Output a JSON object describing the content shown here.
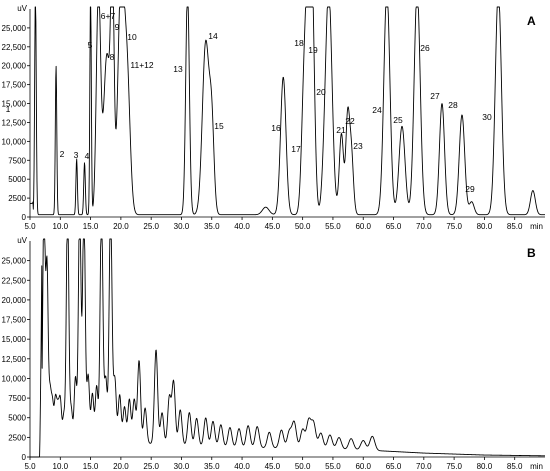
{
  "chart_data": [
    {
      "type": "line",
      "panel_label": "A",
      "yunit": "uV",
      "xunit": "min",
      "xlim": [
        5.0,
        90.0
      ],
      "ylim": [
        0,
        27500
      ],
      "x_ticks": [
        5.0,
        10.0,
        15.0,
        20.0,
        25.0,
        30.0,
        35.0,
        40.0,
        45.0,
        50.0,
        55.0,
        60.0,
        65.0,
        70.0,
        75.0,
        80.0,
        85.0
      ],
      "x_tick_labels": [
        "5.0",
        "10.0",
        "15.0",
        "20.0",
        "25.0",
        "30.0",
        "35.0",
        "40.0",
        "45.0",
        "50.0",
        "55.0",
        "60.0",
        "65.0",
        "70.0",
        "75.0",
        "80.0",
        "85.0"
      ],
      "y_ticks": [
        0,
        2500,
        5000,
        7500,
        10000,
        12500,
        15000,
        17500,
        20000,
        22500,
        25000
      ],
      "y_tick_labels": [
        "0",
        "2500",
        "5000",
        "7500",
        "10,000",
        "12,500",
        "15,000",
        "17,500",
        "20,000",
        "22,500",
        "25,000"
      ],
      "baseline": 300,
      "peaks": [
        {
          "label": "1",
          "x": 5.9,
          "y": 30000
        },
        {
          "label": "2",
          "x": 9.3,
          "y": 20000
        },
        {
          "label": "3",
          "x": 12.7,
          "y": 7700
        },
        {
          "label": "4",
          "x": 14.0,
          "y": 7200
        },
        {
          "label": "5",
          "x": 15.0,
          "y": 30000
        },
        {
          "label": "6+7",
          "x": 16.3,
          "y": 30000
        },
        {
          "label": "8",
          "x": 17.7,
          "y": 21500
        },
        {
          "label": "9",
          "x": 18.6,
          "y": 30000
        },
        {
          "label": "10",
          "x": 20.0,
          "y": 30000
        },
        {
          "label": "11+12",
          "x": 21.0,
          "y": 19000
        },
        {
          "label": "13",
          "x": 31.0,
          "y": 30000
        },
        {
          "label": "14",
          "x": 34.0,
          "y": 23000
        },
        {
          "label": "15",
          "x": 35.0,
          "y": 11500
        },
        {
          "label": "",
          "x": 43.9,
          "y": 1300
        },
        {
          "label": "16",
          "x": 46.8,
          "y": 18500
        },
        {
          "label": "17",
          "x": 50.1,
          "y": 8200
        },
        {
          "label": "18",
          "x": 50.9,
          "y": 30000
        },
        {
          "label": "19",
          "x": 51.6,
          "y": 20000
        },
        {
          "label": "",
          "x": 53.4,
          "y": 2000
        },
        {
          "label": "20",
          "x": 54.3,
          "y": 30000
        },
        {
          "label": "21",
          "x": 56.4,
          "y": 11000
        },
        {
          "label": "22",
          "x": 57.4,
          "y": 12000
        },
        {
          "label": "23",
          "x": 58.0,
          "y": 9000
        },
        {
          "label": "24",
          "x": 63.9,
          "y": 30000
        },
        {
          "label": "25",
          "x": 66.4,
          "y": 12000
        },
        {
          "label": "26",
          "x": 68.9,
          "y": 30000
        },
        {
          "label": "27",
          "x": 73.0,
          "y": 15000
        },
        {
          "label": "28",
          "x": 76.3,
          "y": 13500
        },
        {
          "label": "29",
          "x": 77.9,
          "y": 2000
        },
        {
          "label": "30",
          "x": 82.3,
          "y": 30000
        },
        {
          "label": "",
          "x": 88.0,
          "y": 3500
        }
      ]
    },
    {
      "type": "line",
      "panel_label": "B",
      "yunit": "uV",
      "xunit": "min",
      "xlim": [
        5.0,
        90.0
      ],
      "ylim": [
        0,
        27500
      ],
      "x_ticks": [
        5.0,
        10.0,
        15.0,
        20.0,
        25.0,
        30.0,
        35.0,
        40.0,
        45.0,
        50.0,
        55.0,
        60.0,
        65.0,
        70.0,
        75.0,
        80.0,
        85.0
      ],
      "x_tick_labels": [
        "5.0",
        "10.0",
        "15.0",
        "20.0",
        "25.0",
        "30.0",
        "35.0",
        "40.0",
        "45.0",
        "50.0",
        "55.0",
        "60.0",
        "65.0",
        "70.0",
        "75.0",
        "80.0",
        "85.0"
      ],
      "y_ticks": [
        0,
        2500,
        5000,
        7500,
        10000,
        12500,
        15000,
        17500,
        20000,
        22500,
        25000
      ],
      "y_tick_labels": [
        "0",
        "2500",
        "5000",
        "7500",
        "10,000",
        "12,500",
        "15,000",
        "17,500",
        "20,000",
        "22,500",
        "25,000"
      ],
      "background": [
        [
          5.0,
          0
        ],
        [
          6.6,
          0
        ],
        [
          7.0,
          2500
        ],
        [
          10.0,
          2200
        ],
        [
          20.0,
          1900
        ],
        [
          30.0,
          1500
        ],
        [
          40.0,
          1200
        ],
        [
          50.0,
          1100
        ],
        [
          60.0,
          900
        ],
        [
          70.0,
          500
        ],
        [
          80.0,
          250
        ],
        [
          90.0,
          150
        ]
      ],
      "peaks": [
        {
          "x": 7.3,
          "y": 30000
        },
        {
          "x": 7.8,
          "y": 22000
        },
        {
          "x": 8.3,
          "y": 5800
        },
        {
          "x": 8.7,
          "y": 4500
        },
        {
          "x": 9.2,
          "y": 5000
        },
        {
          "x": 9.6,
          "y": 3800
        },
        {
          "x": 10.0,
          "y": 5000
        },
        {
          "x": 10.6,
          "y": 3200
        },
        {
          "x": 11.2,
          "y": 30000
        },
        {
          "x": 11.8,
          "y": 4000
        },
        {
          "x": 12.5,
          "y": 8000
        },
        {
          "x": 13.2,
          "y": 30000
        },
        {
          "x": 13.9,
          "y": 30000
        },
        {
          "x": 14.6,
          "y": 8300
        },
        {
          "x": 15.3,
          "y": 6000
        },
        {
          "x": 16.0,
          "y": 7000
        },
        {
          "x": 16.8,
          "y": 30000
        },
        {
          "x": 17.5,
          "y": 8000
        },
        {
          "x": 18.3,
          "y": 30000
        },
        {
          "x": 19.0,
          "y": 8000
        },
        {
          "x": 19.8,
          "y": 6000
        },
        {
          "x": 20.6,
          "y": 4500
        },
        {
          "x": 21.4,
          "y": 5500
        },
        {
          "x": 22.2,
          "y": 5500
        },
        {
          "x": 23.0,
          "y": 10500
        },
        {
          "x": 24.0,
          "y": 4500
        },
        {
          "x": 25.8,
          "y": 12000
        },
        {
          "x": 26.8,
          "y": 4000
        },
        {
          "x": 28.0,
          "y": 6000
        },
        {
          "x": 28.7,
          "y": 8000
        },
        {
          "x": 29.8,
          "y": 4500
        },
        {
          "x": 31.3,
          "y": 4200
        },
        {
          "x": 32.5,
          "y": 3500
        },
        {
          "x": 34.0,
          "y": 3600
        },
        {
          "x": 35.2,
          "y": 3200
        },
        {
          "x": 36.5,
          "y": 2800
        },
        {
          "x": 38.0,
          "y": 2500
        },
        {
          "x": 39.5,
          "y": 2400
        },
        {
          "x": 41.0,
          "y": 2800
        },
        {
          "x": 42.5,
          "y": 2700
        },
        {
          "x": 44.5,
          "y": 2000
        },
        {
          "x": 46.5,
          "y": 2300
        },
        {
          "x": 47.8,
          "y": 2100
        },
        {
          "x": 48.6,
          "y": 3300
        },
        {
          "x": 50.0,
          "y": 2400
        },
        {
          "x": 51.0,
          "y": 3500
        },
        {
          "x": 51.8,
          "y": 3200
        },
        {
          "x": 53.0,
          "y": 2000
        },
        {
          "x": 54.5,
          "y": 1800
        },
        {
          "x": 56.0,
          "y": 1500
        },
        {
          "x": 58.0,
          "y": 1400
        },
        {
          "x": 60.0,
          "y": 1200
        },
        {
          "x": 61.5,
          "y": 1800
        }
      ]
    }
  ]
}
